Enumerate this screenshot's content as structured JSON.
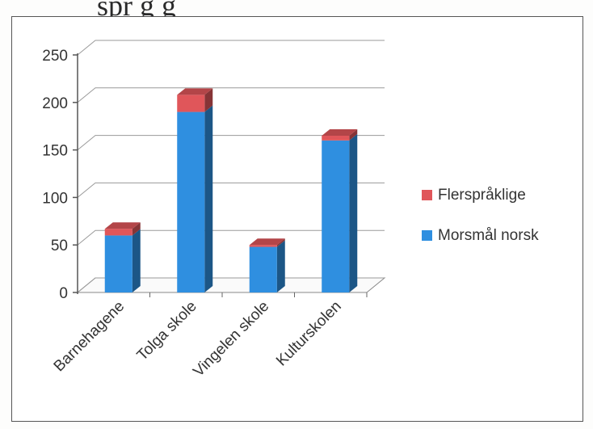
{
  "document": {
    "heading_fragment": "spr  g                   g"
  },
  "chart_data": {
    "type": "bar",
    "stacked": true,
    "three_d": true,
    "categories": [
      "Barnehagene",
      "Tolga skole",
      "Vingelen skole",
      "Kulturskolen"
    ],
    "series": [
      {
        "name": "Morsmål norsk",
        "values": [
          60,
          190,
          48,
          160
        ],
        "color": "#2f8fe0"
      },
      {
        "name": "Flerspråklige",
        "values": [
          7,
          18,
          2,
          5
        ],
        "color": "#e0565a"
      }
    ],
    "y_ticks": [
      0,
      50,
      100,
      150,
      200,
      250
    ],
    "ylim": [
      0,
      250
    ],
    "grid": true,
    "legend_position": "right",
    "legend_order": [
      1,
      0
    ]
  }
}
